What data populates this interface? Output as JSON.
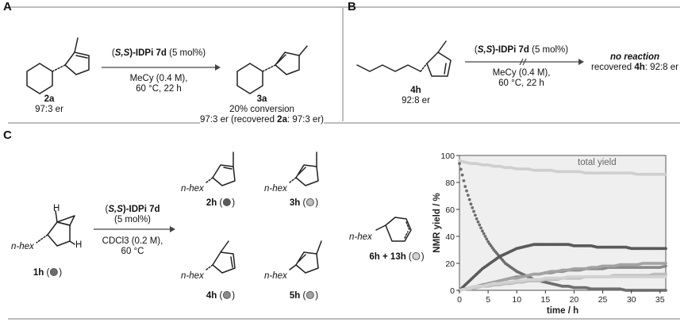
{
  "panels": {
    "A": {
      "letter": "A",
      "catalyst_prefix": "(",
      "catalyst_ss": "S,S",
      "catalyst_suffix": ")-IDPi 7d",
      "catalyst_loading": " (5 mol%)",
      "solvent": "MeCy (0.4 M),",
      "conditions": "60 °C, 22 h",
      "reactant_label": "2a",
      "reactant_er": "97:3 er",
      "product_label": "3a",
      "conversion": "20% conversion",
      "product_er_prefix": "97:3 er (recovered ",
      "product_er_cmpd": "2a",
      "product_er_suffix": ": 97:3 er)"
    },
    "B": {
      "letter": "B",
      "catalyst_prefix": "(",
      "catalyst_ss": "S,S",
      "catalyst_suffix": ")-IDPi 7d",
      "catalyst_loading": " (5 mol%)",
      "solvent": "MeCy (0.4 M),",
      "conditions": "60 °C, 22 h",
      "reactant_label": "4h",
      "reactant_er": "92:8 er",
      "result": "no reaction",
      "recovered_prefix": "recovered ",
      "recovered_cmpd": "4h",
      "recovered_suffix": ": 92:8 er"
    },
    "C": {
      "letter": "C",
      "catalyst_prefix": "(",
      "catalyst_ss": "S,S",
      "catalyst_suffix": ")-IDPi 7d",
      "catalyst_loading": "(5 mol%)",
      "solvent": "CDCl3 (0.2 M),",
      "conditions": "60 °C",
      "substituent": "n-hex",
      "h_label": "H",
      "compounds": {
        "c1h": "1h",
        "c2h": "2h",
        "c3h": "3h",
        "c4h": "4h",
        "c5h": "5h",
        "c6h": "6h + 13h"
      }
    }
  },
  "colors": {
    "c1h": "#6e6e6e",
    "c2h": "#5a5a5a",
    "c3h": "#bdbdbd",
    "c4h": "#8a8a8a",
    "c5h": "#a3a3a3",
    "c6h": "#d2d2d2",
    "total": "#cfcfcf",
    "plot_bg": "#efefef"
  },
  "chart_data": {
    "type": "scatter",
    "xlabel": "time / h",
    "ylabel": "NMR yield / %",
    "xlim": [
      0,
      36
    ],
    "ylim": [
      0,
      100
    ],
    "xticks": [
      "0",
      "5",
      "10",
      "15",
      "20",
      "25",
      "30",
      "35"
    ],
    "yticks": [
      "0",
      "20",
      "40",
      "60",
      "80",
      "100"
    ],
    "annotation": "total yield",
    "grid": false,
    "x": [
      0,
      1,
      2,
      3,
      4,
      5,
      6,
      7,
      8,
      9,
      10,
      11,
      12,
      13,
      14,
      15,
      16,
      17,
      18,
      19,
      20,
      21,
      22,
      23,
      24,
      25,
      26,
      27,
      28,
      29,
      30,
      31,
      32,
      33,
      34,
      35,
      36
    ],
    "series": [
      {
        "key": "total",
        "values": [
          96,
          95,
          94,
          94,
          93,
          93,
          92,
          92,
          91,
          91,
          90,
          90,
          90,
          89,
          89,
          89,
          89,
          88,
          88,
          88,
          88,
          88,
          87,
          87,
          87,
          87,
          87,
          87,
          87,
          87,
          87,
          86,
          86,
          86,
          86,
          86,
          86
        ]
      },
      {
        "key": "c1h",
        "values": [
          94,
          77,
          64,
          53,
          44,
          36,
          30,
          25,
          20,
          17,
          14,
          12,
          10,
          8,
          7,
          6,
          5,
          4,
          3,
          3,
          2,
          2,
          2,
          1,
          1,
          1,
          1,
          1,
          1,
          0,
          0,
          0,
          0,
          0,
          0,
          0,
          0
        ]
      },
      {
        "key": "c2h",
        "values": [
          0,
          4,
          8,
          12,
          16,
          19,
          22,
          25,
          27,
          29,
          31,
          32,
          33,
          34,
          34,
          34,
          34,
          34,
          34,
          34,
          33,
          33,
          33,
          33,
          32,
          32,
          32,
          32,
          32,
          32,
          31,
          31,
          31,
          31,
          31,
          31,
          31
        ]
      },
      {
        "key": "c4h",
        "values": [
          0,
          1,
          2,
          3,
          4,
          5,
          6,
          7,
          8,
          9,
          10,
          10,
          11,
          12,
          12,
          13,
          13,
          14,
          14,
          15,
          15,
          15,
          16,
          16,
          16,
          16,
          17,
          17,
          17,
          17,
          17,
          17,
          17,
          17,
          17,
          17,
          18
        ]
      },
      {
        "key": "c5h",
        "values": [
          0,
          1,
          2,
          3,
          4,
          5,
          6,
          7,
          8,
          9,
          9,
          10,
          11,
          12,
          12,
          13,
          14,
          14,
          15,
          15,
          16,
          16,
          16,
          17,
          17,
          18,
          18,
          18,
          19,
          19,
          19,
          19,
          20,
          20,
          20,
          20,
          20
        ]
      },
      {
        "key": "c3h",
        "values": [
          0,
          1,
          1,
          2,
          3,
          3,
          4,
          4,
          5,
          5,
          6,
          6,
          7,
          7,
          7,
          8,
          8,
          8,
          9,
          9,
          9,
          9,
          10,
          10,
          10,
          10,
          10,
          11,
          11,
          11,
          11,
          11,
          11,
          11,
          12,
          12,
          12
        ]
      },
      {
        "key": "c6h",
        "values": [
          0,
          1,
          2,
          3,
          3,
          4,
          5,
          5,
          6,
          6,
          7,
          7,
          8,
          8,
          8,
          9,
          9,
          9,
          9,
          10,
          10,
          10,
          10,
          10,
          10,
          10,
          10,
          10,
          10,
          10,
          10,
          10,
          10,
          10,
          10,
          10,
          10
        ]
      }
    ]
  }
}
